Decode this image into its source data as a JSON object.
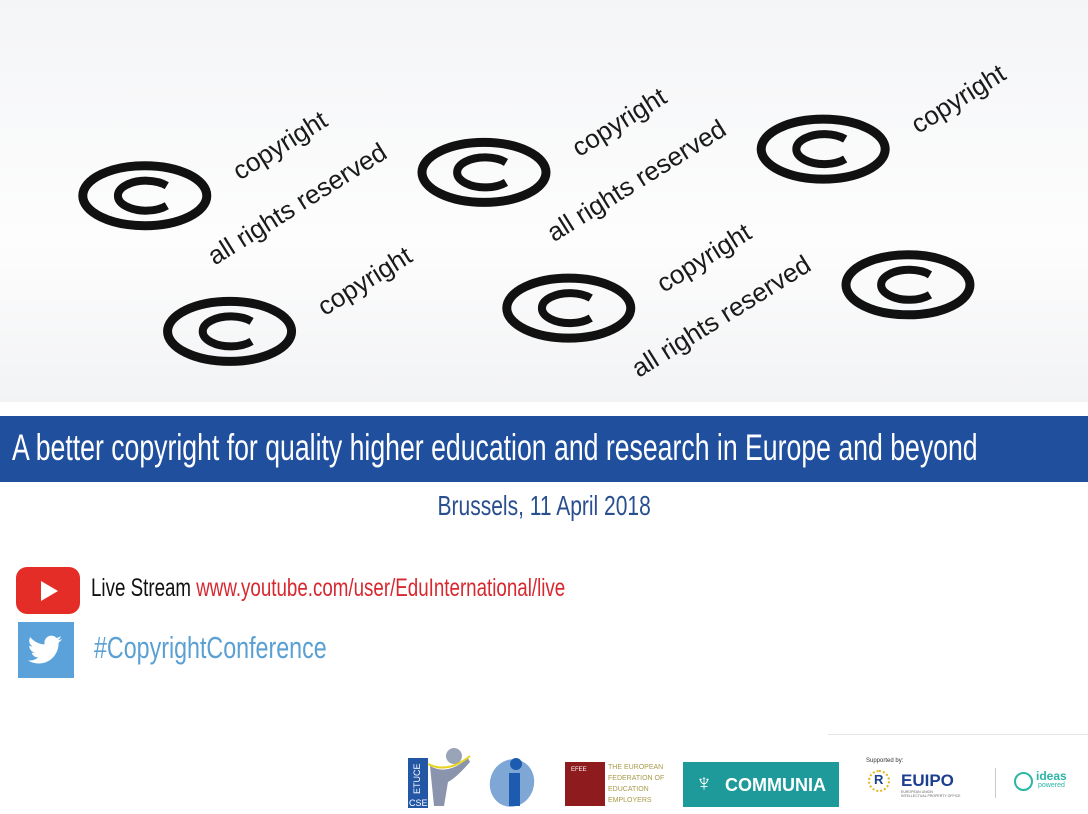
{
  "photo": {
    "word_1": "copyright",
    "word_2": "all rights reserved",
    "symbol": "©"
  },
  "banner": {
    "title": "A better copyright  for quality higher education and research in Europe and beyond",
    "color": "#1f4f9d"
  },
  "date": "Brussels, 11 April 2018",
  "livestream": {
    "icon": "youtube-icon",
    "label": "Live Stream",
    "url": "www.youtube.com/user/EduInternational/live"
  },
  "twitter": {
    "icon": "twitter-icon",
    "hashtag": "#CopyrightConference"
  },
  "logos": {
    "etuce": {
      "line1": "ETUCE",
      "line2": "CSEE"
    },
    "efee": {
      "abbr": "EFEE",
      "lines": [
        "THE EUROPEAN",
        "FEDERATION OF",
        "EDUCATION",
        "EMPLOYERS"
      ]
    },
    "communia": "COMMUNIA",
    "supported_by": "Supported by:",
    "euipo": {
      "name": "EUIPO",
      "sub1": "EUROPEAN UNION",
      "sub2": "INTELLECTUAL PROPERTY OFFICE"
    },
    "ideas": {
      "line1": "ideas",
      "line2": "powered"
    }
  }
}
